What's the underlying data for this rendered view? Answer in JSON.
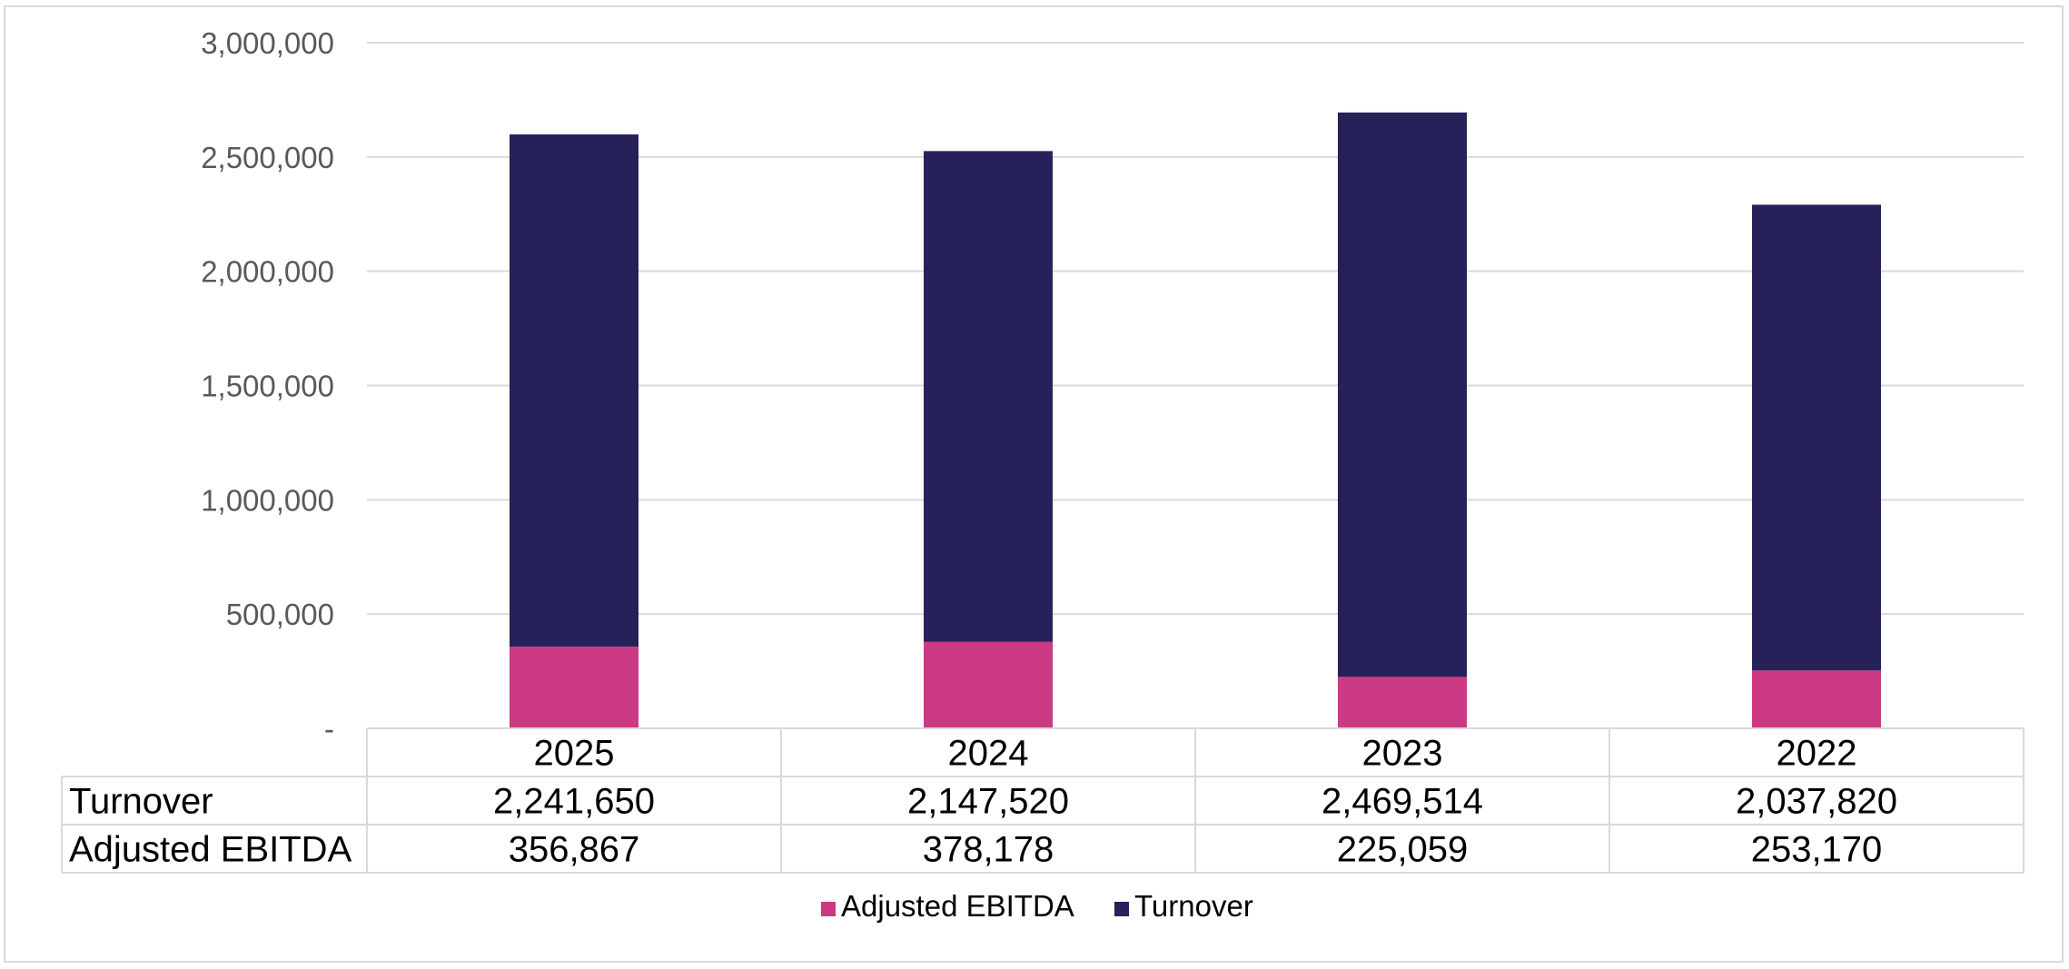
{
  "colors": {
    "ebitda": "#cc3a84",
    "turnover": "#262259",
    "grid": "#d9d9d9",
    "axis_text": "#595959"
  },
  "chart_data": {
    "type": "bar",
    "stacked": true,
    "categories": [
      "2025",
      "2024",
      "2023",
      "2022"
    ],
    "series": [
      {
        "name": "Adjusted EBITDA",
        "values": [
          356867,
          378178,
          225059,
          253170
        ]
      },
      {
        "name": "Turnover",
        "values": [
          2241650,
          2147520,
          2469514,
          2037820
        ]
      }
    ],
    "ylim": [
      0,
      3000000
    ],
    "yticks": [
      0,
      500000,
      1000000,
      1500000,
      2000000,
      2500000,
      3000000
    ],
    "ytick_labels": [
      "-",
      "500,000",
      "1,000,000",
      "1,500,000",
      "2,000,000",
      "2,500,000",
      "3,000,000"
    ],
    "data_table": {
      "rows": [
        {
          "label": "Turnover",
          "values": [
            "2,241,650",
            "2,147,520",
            "2,469,514",
            "2,037,820"
          ]
        },
        {
          "label": "Adjusted EBITDA",
          "values": [
            "356,867",
            "378,178",
            "225,059",
            "253,170"
          ]
        }
      ]
    },
    "legend": [
      "Adjusted EBITDA",
      "Turnover"
    ],
    "legend_position": "bottom",
    "grid": true
  }
}
